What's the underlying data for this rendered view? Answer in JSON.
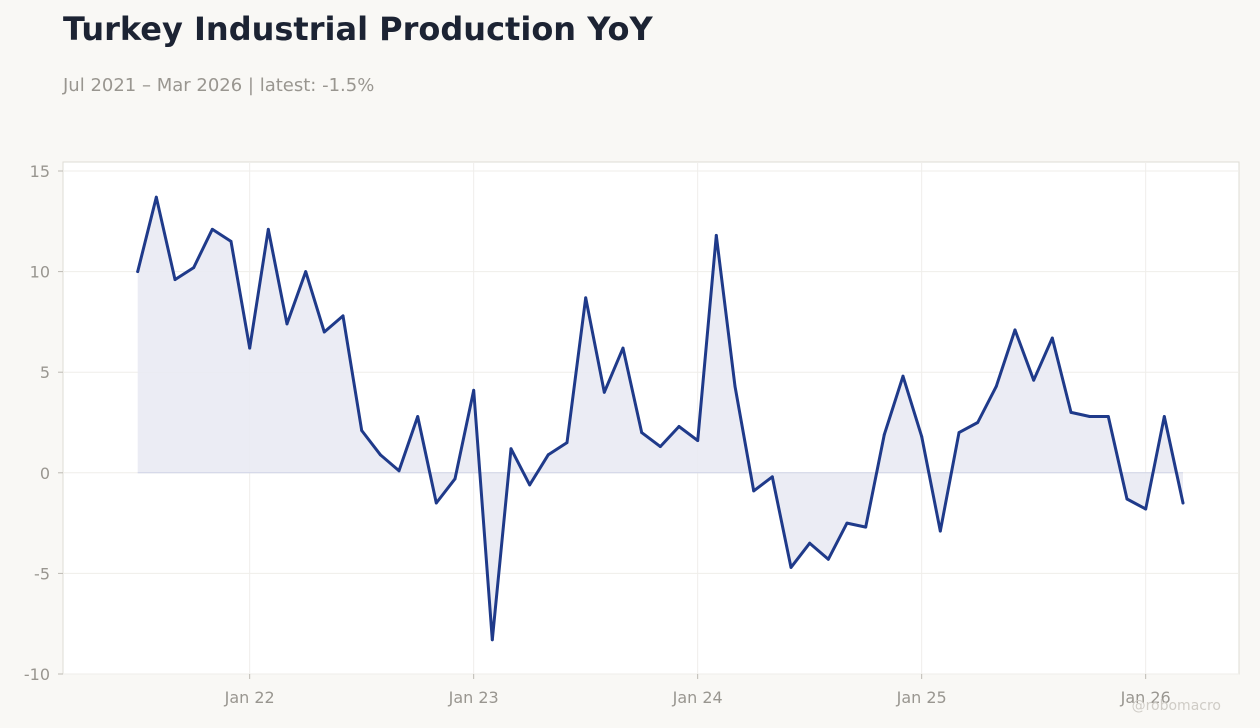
{
  "title": "Turkey Industrial Production YoY",
  "subtitle": "Jul 2021 – Mar 2026 | latest: -1.5%",
  "watermark": "@robomacro",
  "colors": {
    "background": "#f9f8f5",
    "plot_background": "#ffffff",
    "line": "#1f3a8a",
    "fill": "#e9eaf3"
  },
  "chart_data": {
    "type": "area",
    "title": "Turkey Industrial Production YoY",
    "subtitle": "Jul 2021 – Mar 2026 | latest: -1.5%",
    "xlabel": "",
    "ylabel": "",
    "ylim": [
      -10,
      15
    ],
    "xlim": [
      "2021-03",
      "2026-06"
    ],
    "grid": true,
    "legend": "none",
    "yticks": [
      -10,
      -5,
      0,
      5,
      10,
      15
    ],
    "xticks": [
      {
        "label": "Jan 22",
        "date": "2022-01"
      },
      {
        "label": "Jan 23",
        "date": "2023-01"
      },
      {
        "label": "Jan 24",
        "date": "2024-01"
      },
      {
        "label": "Jan 25",
        "date": "2025-01"
      },
      {
        "label": "Jan 26",
        "date": "2026-01"
      }
    ],
    "x": [
      "2021-07",
      "2021-08",
      "2021-09",
      "2021-10",
      "2021-11",
      "2021-12",
      "2022-01",
      "2022-02",
      "2022-03",
      "2022-04",
      "2022-05",
      "2022-06",
      "2022-07",
      "2022-08",
      "2022-09",
      "2022-10",
      "2022-11",
      "2022-12",
      "2023-01",
      "2023-02",
      "2023-03",
      "2023-04",
      "2023-05",
      "2023-06",
      "2023-07",
      "2023-08",
      "2023-09",
      "2023-10",
      "2023-11",
      "2023-12",
      "2024-01",
      "2024-02",
      "2024-03",
      "2024-04",
      "2024-05",
      "2024-06",
      "2024-07",
      "2024-08",
      "2024-09",
      "2024-10",
      "2024-11",
      "2024-12",
      "2025-01",
      "2025-02",
      "2025-03",
      "2025-04",
      "2025-05",
      "2025-06",
      "2025-07",
      "2025-08",
      "2025-09",
      "2025-10",
      "2025-11",
      "2025-12",
      "2026-01",
      "2026-02",
      "2026-03"
    ],
    "series": [
      {
        "values": [
          10.0,
          13.7,
          9.6,
          10.2,
          12.1,
          11.5,
          6.2,
          12.1,
          7.4,
          10.0,
          7.0,
          7.8,
          2.1,
          0.9,
          0.1,
          2.8,
          -1.5,
          -0.3,
          4.1,
          -8.3,
          1.2,
          -0.6,
          0.9,
          1.5,
          8.7,
          4.0,
          6.2,
          2.0,
          1.3,
          2.3,
          1.6,
          11.8,
          4.3,
          -0.9,
          -0.2,
          -4.7,
          -3.5,
          -4.3,
          -2.5,
          -2.7,
          1.9,
          4.8,
          1.8,
          -2.9,
          2.0,
          2.5,
          4.3,
          7.1,
          4.6,
          6.7,
          3.0,
          2.8,
          2.8,
          -1.3,
          -1.8,
          2.8,
          -1.5
        ]
      }
    ]
  }
}
